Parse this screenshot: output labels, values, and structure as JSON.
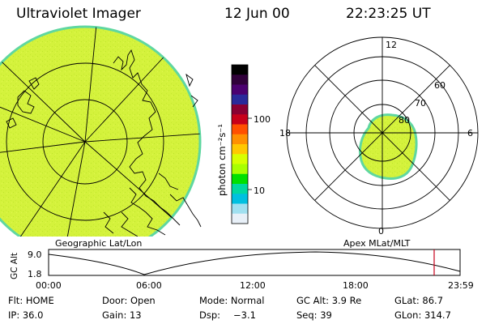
{
  "header": {
    "title": "Ultraviolet Imager",
    "date": "12 Jun 00",
    "time": "22:23:25 UT"
  },
  "colorbar": {
    "unit": "photon cm⁻²s⁻¹",
    "ticks": [
      "100",
      "10"
    ],
    "colors": [
      "#000000",
      "#30003a",
      "#4b0070",
      "#2a2a9a",
      "#8a0032",
      "#c8001a",
      "#ff5000",
      "#ff9000",
      "#ffc800",
      "#d8ff00",
      "#a8ff00",
      "#00e000",
      "#00d8a0",
      "#00c0e0",
      "#a0e0f0",
      "#e8f0f8"
    ]
  },
  "left_map": {
    "label": "Geographic Lat/Lon",
    "fill": "#d4f23c",
    "edge": "#5fd7a0"
  },
  "right_map": {
    "label": "Apex MLat/MLT",
    "mlt_labels": {
      "top": "12",
      "left": "18",
      "right": "6",
      "bottom": "0"
    },
    "mlat_labels": [
      "60",
      "70",
      "80"
    ],
    "fill": "#d4f23c",
    "edge": "#5fd7a0"
  },
  "orbit": {
    "ylabel": "GC Alt",
    "yticks": [
      "9.0",
      "1.8"
    ],
    "xticks": [
      "00:00",
      "06:00",
      "12:00",
      "18:00",
      "23:59"
    ],
    "marker_color": "#c8001a"
  },
  "footer": {
    "row1": [
      "Flt: HOME",
      "Door: Open",
      "Mode: Normal",
      "GC Alt: 3.9 Re",
      "GLat: 86.7"
    ],
    "row2": [
      "IP: 36.0",
      "Gain: 13",
      "Dsp:",
      "−3.1",
      "Seq: 39",
      "GLon: 314.7"
    ]
  }
}
